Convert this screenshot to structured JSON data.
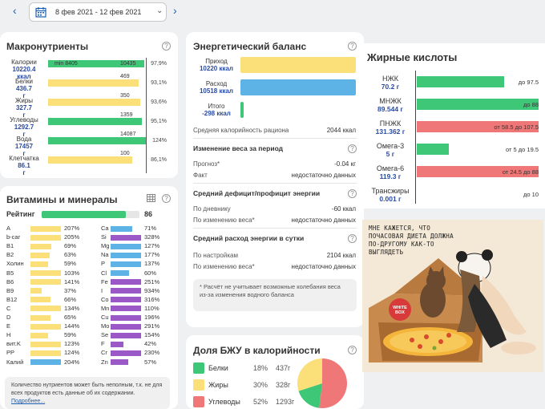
{
  "header": {
    "date_range": "8 фев 2021 - 12 фев 2021"
  },
  "macros": {
    "title": "Макронутриенты",
    "rows": [
      {
        "name": "Калории",
        "value": "10220.4",
        "unit": "ккал",
        "color": "#3dc777",
        "fill": 0.98,
        "min_label": "min 8405",
        "target": "10435",
        "pct": "97,9%"
      },
      {
        "name": "Белки",
        "value": "436.7",
        "unit": "г",
        "color": "#fbe07a",
        "fill": 0.93,
        "min_label": "",
        "target": "469",
        "pct": "93,1%"
      },
      {
        "name": "Жиры",
        "value": "327.7",
        "unit": "г",
        "color": "#fbe07a",
        "fill": 0.94,
        "min_label": "",
        "target": "350",
        "pct": "93,6%"
      },
      {
        "name": "Углеводы",
        "value": "1292.7",
        "unit": "г",
        "color": "#3dc777",
        "fill": 0.96,
        "min_label": "",
        "target": "1359",
        "pct": "95,1%"
      },
      {
        "name": "Вода",
        "value": "17457",
        "unit": "г",
        "color": "#3dc777",
        "fill": 1.0,
        "min_label": "",
        "target": "14087",
        "pct": "124%"
      },
      {
        "name": "Клетчатка",
        "value": "86.1",
        "unit": "г",
        "color": "#fbe07a",
        "fill": 0.86,
        "min_label": "",
        "target": "100",
        "pct": "86,1%"
      }
    ]
  },
  "vitamins": {
    "title": "Витамины и минералы",
    "rating_label": "Рейтинг",
    "rating_value": "86",
    "rating_fill": 0.86,
    "left": [
      {
        "sym": "A",
        "pct": "207%",
        "fill": 1.0,
        "color": "#fbe07a"
      },
      {
        "sym": "b-car",
        "pct": "205%",
        "fill": 1.0,
        "color": "#fbe07a"
      },
      {
        "sym": "B1",
        "pct": "69%",
        "fill": 0.69,
        "color": "#fbe07a"
      },
      {
        "sym": "B2",
        "pct": "63%",
        "fill": 0.63,
        "color": "#fbe07a"
      },
      {
        "sym": "Холин",
        "pct": "59%",
        "fill": 0.59,
        "color": "#fbe07a"
      },
      {
        "sym": "B5",
        "pct": "103%",
        "fill": 1.0,
        "color": "#fbe07a"
      },
      {
        "sym": "B6",
        "pct": "141%",
        "fill": 1.0,
        "color": "#fbe07a"
      },
      {
        "sym": "B9",
        "pct": "37%",
        "fill": 0.37,
        "color": "#fbe07a"
      },
      {
        "sym": "B12",
        "pct": "66%",
        "fill": 0.66,
        "color": "#fbe07a"
      },
      {
        "sym": "C",
        "pct": "134%",
        "fill": 1.0,
        "color": "#fbe07a"
      },
      {
        "sym": "D",
        "pct": "65%",
        "fill": 0.65,
        "color": "#fbe07a"
      },
      {
        "sym": "E",
        "pct": "144%",
        "fill": 1.0,
        "color": "#fbe07a"
      },
      {
        "sym": "H",
        "pct": "59%",
        "fill": 0.59,
        "color": "#fbe07a"
      },
      {
        "sym": "вит.K",
        "pct": "123%",
        "fill": 1.0,
        "color": "#fbe07a"
      },
      {
        "sym": "PP",
        "pct": "124%",
        "fill": 1.0,
        "color": "#fbe07a"
      },
      {
        "sym": "Калий",
        "pct": "204%",
        "fill": 1.0,
        "color": "#5eb3e6"
      }
    ],
    "right": [
      {
        "sym": "Ca",
        "pct": "71%",
        "fill": 0.71,
        "color": "#5eb3e6"
      },
      {
        "sym": "Si",
        "pct": "328%",
        "fill": 1.0,
        "color": "#9b59c7"
      },
      {
        "sym": "Mg",
        "pct": "127%",
        "fill": 1.0,
        "color": "#5eb3e6"
      },
      {
        "sym": "Na",
        "pct": "177%",
        "fill": 1.0,
        "color": "#5eb3e6"
      },
      {
        "sym": "P",
        "pct": "137%",
        "fill": 1.0,
        "color": "#5eb3e6"
      },
      {
        "sym": "Cl",
        "pct": "60%",
        "fill": 0.6,
        "color": "#5eb3e6"
      },
      {
        "sym": "Fe",
        "pct": "251%",
        "fill": 1.0,
        "color": "#9b59c7"
      },
      {
        "sym": "I",
        "pct": "934%",
        "fill": 1.0,
        "color": "#9b59c7"
      },
      {
        "sym": "Co",
        "pct": "316%",
        "fill": 1.0,
        "color": "#9b59c7"
      },
      {
        "sym": "Mn",
        "pct": "110%",
        "fill": 1.0,
        "color": "#9b59c7"
      },
      {
        "sym": "Cu",
        "pct": "196%",
        "fill": 1.0,
        "color": "#9b59c7"
      },
      {
        "sym": "Mo",
        "pct": "291%",
        "fill": 1.0,
        "color": "#9b59c7"
      },
      {
        "sym": "Se",
        "pct": "154%",
        "fill": 1.0,
        "color": "#9b59c7"
      },
      {
        "sym": "F",
        "pct": "42%",
        "fill": 0.42,
        "color": "#9b59c7"
      },
      {
        "sym": "Cr",
        "pct": "230%",
        "fill": 1.0,
        "color": "#9b59c7"
      },
      {
        "sym": "Zn",
        "pct": "57%",
        "fill": 0.57,
        "color": "#9b59c7"
      }
    ],
    "note": "Количество нутриентов может быть неполным, т.к. не для всех продуктов есть данные об их содержании.",
    "note_link": "Подробнее..."
  },
  "energy": {
    "title": "Энергетический баланс",
    "bars": [
      {
        "label": "Приход",
        "value": "10220 ккал",
        "color": "#fbe07a",
        "fill": 1.0
      },
      {
        "label": "Расход",
        "value": "10518 ккал",
        "color": "#5eb3e6",
        "fill": 1.0
      },
      {
        "label": "Итого",
        "value": "-298 ккал",
        "color": "#3dc777",
        "fill": 0.03
      }
    ],
    "avg_label": "Средняя калорийность рациона",
    "avg_value": "2044 ккал",
    "weight_title": "Изменение веса за период",
    "forecast_label": "Прогноз*",
    "forecast_value": "-0.04 кг",
    "fact_label": "Факт",
    "fact_value": "недостаточно данных",
    "deficit_title": "Средний дефицит/профицит энергии",
    "diary_label": "По дневнику",
    "diary_value": "-60 ккал",
    "weightchange_label": "По изменению веса*",
    "weightchange_value": "недостаточно данных",
    "spend_title": "Средний расход энергии в сутки",
    "settings_label": "По настройкам",
    "settings_value": "2104 ккал",
    "spend_weight_label": "По изменению веса*",
    "spend_weight_value": "недостаточно данных",
    "footnote": "* Расчёт не учитывает возможные колебания веса из-за изменения водного баланса"
  },
  "bju": {
    "title": "Доля БЖУ в калорийности",
    "rows": [
      {
        "name": "Белки",
        "pct": "18%",
        "grams": "437г",
        "color": "#3dc777",
        "share": 18
      },
      {
        "name": "Жиры",
        "pct": "30%",
        "grams": "328г",
        "color": "#fbe07a",
        "share": 30
      },
      {
        "name": "Углеводы",
        "pct": "52%",
        "grams": "1293г",
        "color": "#f07777",
        "share": 52
      }
    ]
  },
  "fatty": {
    "title": "Жирные кислоты",
    "rows": [
      {
        "name": "НЖК",
        "value": "70.2 г",
        "color": "#3dc777",
        "fill": 0.72,
        "range": "до 97.5"
      },
      {
        "name": "МНЖК",
        "value": "89.544 г",
        "color": "#3dc777",
        "fill": 1.0,
        "range": "до 88"
      },
      {
        "name": "ПНЖК",
        "value": "131.362 г",
        "color": "#f07777",
        "fill": 1.0,
        "range": "от 58.5 до 107.5"
      },
      {
        "name": "Омега-3",
        "value": "5 г",
        "color": "#3dc777",
        "fill": 0.26,
        "range": "от 5 до 19.5"
      },
      {
        "name": "Омега-6",
        "value": "119.3 г",
        "color": "#f07777",
        "fill": 1.0,
        "range": "от 24.5 до 88"
      },
      {
        "name": "Трансжиры",
        "value": "0.001 г",
        "color": "#3dc777",
        "fill": 0.0,
        "range": "до 10"
      }
    ]
  },
  "comic": {
    "caption": "МНЕ КАЖЕТСЯ, ЧТО ПОЧАСОВАЯ ДИЕТА ДОЛЖНА ПО-ДРУГОМУ КАК-ТО ВЫГЛЯДЕТЬ",
    "box_label": "white box"
  }
}
